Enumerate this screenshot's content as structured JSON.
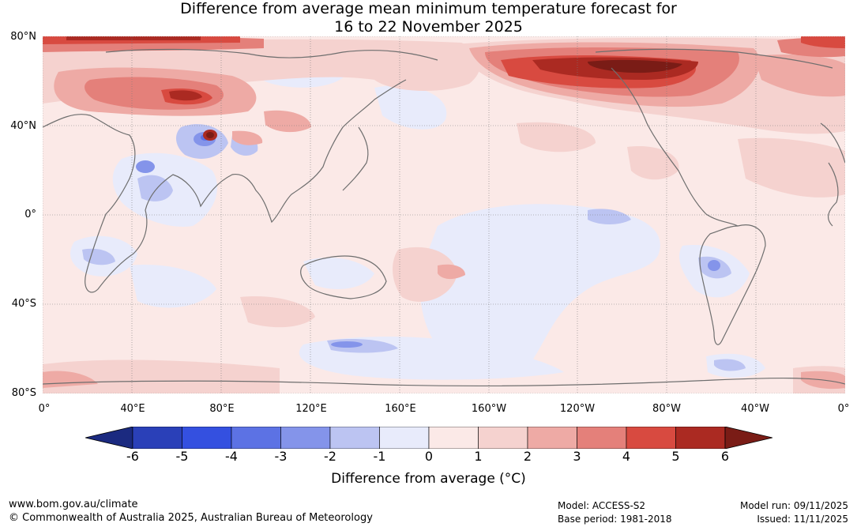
{
  "title": {
    "line1": "Difference from average mean minimum temperature forecast for",
    "line2": "16 to 22 November 2025"
  },
  "map": {
    "latitude_labels": [
      "80°N",
      "40°N",
      "0°",
      "40°S",
      "80°S"
    ],
    "longitude_labels": [
      "0°",
      "40°E",
      "80°E",
      "120°E",
      "160°E",
      "160°W",
      "120°W",
      "80°W",
      "40°W",
      "0°"
    ],
    "background_color": "#fbe9e7",
    "coastline_color": "#6e6e6e"
  },
  "legend": {
    "title": "Difference from average (°C)",
    "tick_labels": [
      "-6",
      "-5",
      "-4",
      "-3",
      "-2",
      "-1",
      "0",
      "1",
      "2",
      "3",
      "4",
      "5",
      "6"
    ],
    "colors": [
      "#1b2a80",
      "#2a40b8",
      "#3450e0",
      "#5c72e4",
      "#8494ea",
      "#bcc4f2",
      "#e8ebfb",
      "#fbe9e7",
      "#f5d2cf",
      "#eeaaa5",
      "#e4807a",
      "#d84a40",
      "#ab2a22",
      "#7a1c16"
    ]
  },
  "footer": {
    "website": "www.bom.gov.au/climate",
    "copyright": "© Commonwealth of Australia 2025, Australian Bureau of Meteorology",
    "model": "Model: ACCESS-S2",
    "base_period": "Base period: 1981-2018",
    "model_run": "Model run: 09/11/2025",
    "issued": "Issued: 11/11/2025"
  }
}
